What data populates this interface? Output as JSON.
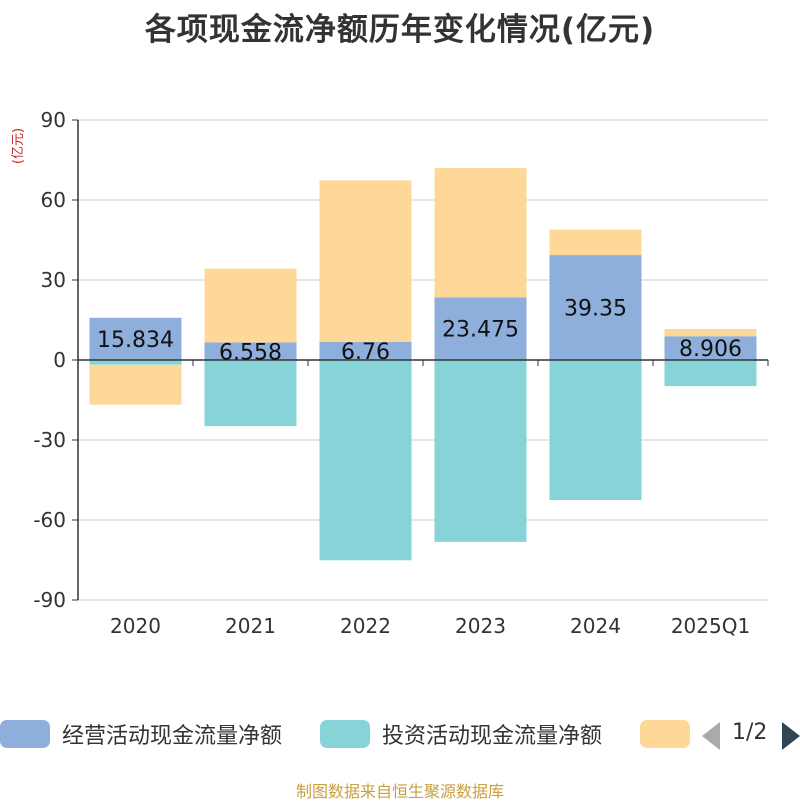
{
  "chart_data": {
    "type": "bar",
    "stacked": true,
    "title": "各项现金流净额历年变化情况(亿元)",
    "ylabel": "(亿元)",
    "xlabel": "",
    "ylim": [
      -90,
      90
    ],
    "yticks": [
      -90,
      -60,
      -30,
      0,
      30,
      60,
      90
    ],
    "categories": [
      "2020",
      "2021",
      "2022",
      "2023",
      "2024",
      "2025Q1"
    ],
    "series": [
      {
        "name": "经营活动现金流量净额",
        "color": "#8eaedb",
        "values": [
          15.834,
          6.558,
          6.76,
          23.475,
          39.35,
          8.906
        ],
        "labels": [
          "15.834",
          "6.558",
          "6.76",
          "23.475",
          "39.35",
          "8.906"
        ]
      },
      {
        "name": "投资活动现金流量净额",
        "color": "#86d4d8",
        "values": [
          -1.8,
          -24.8,
          -75.1,
          -68.2,
          -52.5,
          -9.8
        ]
      },
      {
        "name": "",
        "color": "#fed899",
        "values": [
          -15.0,
          27.7,
          60.6,
          48.5,
          9.5,
          2.7
        ]
      }
    ],
    "grid": true,
    "legend_position": "bottom"
  },
  "legend": {
    "page": "1/2"
  },
  "source": "制图数据来自恒生聚源数据库"
}
